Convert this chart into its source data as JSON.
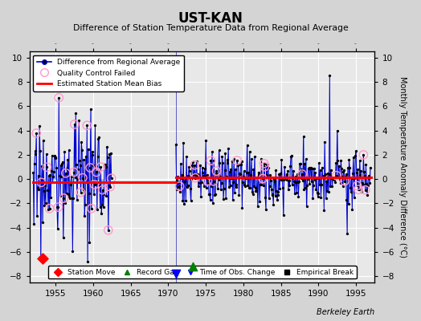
{
  "title": "UST-KAN",
  "subtitle": "Difference of Station Temperature Data from Regional Average",
  "ylabel": "Monthly Temperature Anomaly Difference (°C)",
  "xlim": [
    1951.5,
    1997.5
  ],
  "ylim": [
    -8.5,
    10.5
  ],
  "yticks": [
    -8,
    -6,
    -4,
    -2,
    0,
    2,
    4,
    6,
    8,
    10
  ],
  "xticks": [
    1955,
    1960,
    1965,
    1970,
    1975,
    1980,
    1985,
    1990,
    1995
  ],
  "bias_line1_x": [
    1952.0,
    1971.0
  ],
  "bias_line1_y": [
    -0.25,
    -0.25
  ],
  "bias_line2_x": [
    1971.0,
    1997.0
  ],
  "bias_line2_y": [
    0.12,
    0.12
  ],
  "station_move_x": 1953.2,
  "station_move_y": -6.5,
  "record_gap_x": 1973.3,
  "record_gap_y": -7.2,
  "time_obs_x": 1971.0,
  "time_obs_y": -7.8,
  "vertical_line_x": 1971.0,
  "fig_bg": "#d4d4d4",
  "plot_bg": "#e8e8e8",
  "grid_color": "#ffffff",
  "note": "Berkeley Earth",
  "period1_start": 1952.0,
  "period1_end": 1962.5,
  "period2_start": 1971.0,
  "period2_end": 1997.0
}
